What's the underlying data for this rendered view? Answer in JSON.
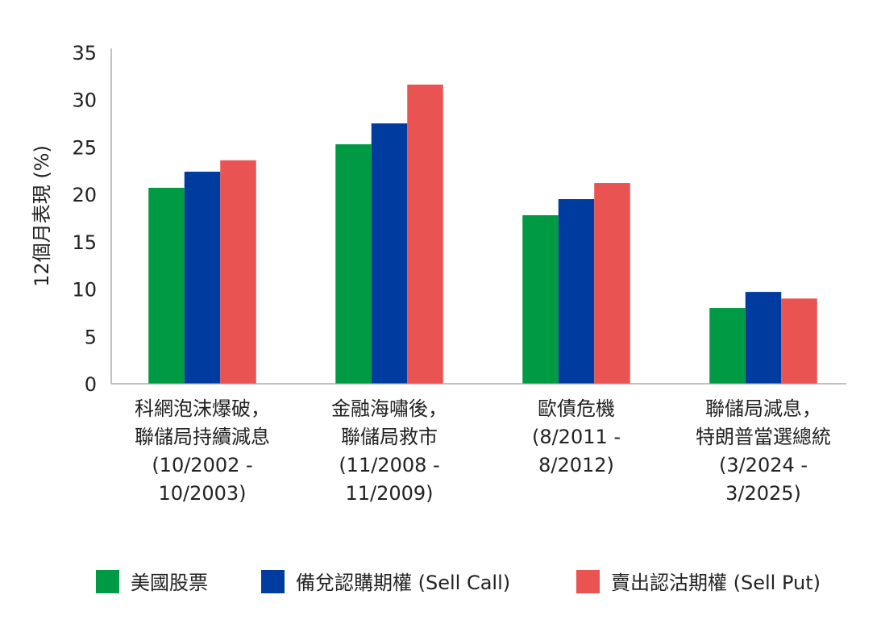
{
  "chart_data": {
    "type": "bar",
    "title": "",
    "xlabel": "",
    "ylabel": "12個月表現 (%)",
    "ylim": [
      0,
      35
    ],
    "yticks": [
      0,
      5,
      10,
      15,
      20,
      25,
      30,
      35
    ],
    "grid": false,
    "legend_position": "bottom",
    "categories": [
      [
        "科網泡沫爆破，",
        "聯儲局持續減息",
        "(10/2002 -",
        "10/2003)"
      ],
      [
        "金融海嘯後，",
        "聯儲局救市",
        "(11/2008 -",
        "11/2009)"
      ],
      [
        "歐債危機",
        "(8/2011 -",
        "8/2012)"
      ],
      [
        "聯儲局減息，",
        "特朗普當選總統",
        "(3/2024 -",
        "3/2025)"
      ]
    ],
    "series": [
      {
        "name": "美國股票",
        "color": "#009A44",
        "values": [
          20.7,
          25.3,
          17.8,
          8.0
        ]
      },
      {
        "name": "備兌認購期權 (Sell Call)",
        "color": "#003C9F",
        "values": [
          22.4,
          27.5,
          19.5,
          9.7
        ]
      },
      {
        "name": "賣出認沽期權 (Sell Put)",
        "color": "#E95352",
        "values": [
          23.6,
          31.6,
          21.2,
          9.0
        ]
      }
    ]
  }
}
